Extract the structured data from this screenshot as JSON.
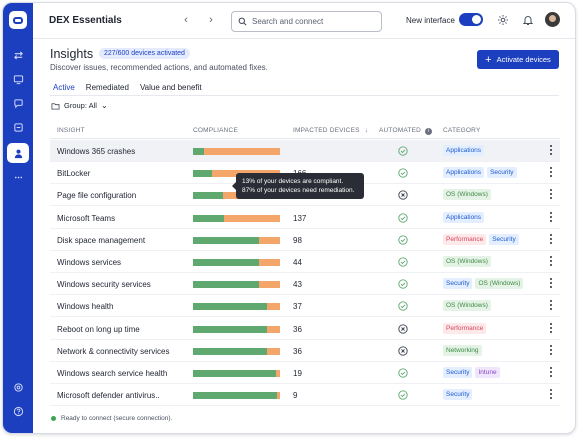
{
  "app": {
    "title": "DEX Essentials"
  },
  "header": {
    "search_placeholder": "Search and connect",
    "new_interface_label": "New interface",
    "new_interface_on": true
  },
  "page": {
    "title": "Insights",
    "devices_badge": "227/600 devices activated",
    "subtitle": "Discover issues, recommended actions, and automated fixes.",
    "primary_button": "Activate devices",
    "tabs": [
      {
        "label": "Active",
        "active": true
      },
      {
        "label": "Remediated",
        "active": false
      },
      {
        "label": "Value and benefit",
        "active": false
      }
    ],
    "group_filter": "Group: All"
  },
  "table": {
    "columns": {
      "insight": "INSIGHT",
      "compliance": "COMPLIANCE",
      "impacted": "IMPACTED DEVICES",
      "automated": "AUTOMATED",
      "category": "CATEGORY"
    },
    "rows": [
      {
        "name": "Windows 365 crashes",
        "compliance": 13,
        "impacted": "",
        "automated": "check",
        "categories": [
          {
            "label": "Applications",
            "color": "blue"
          }
        ]
      },
      {
        "name": "BitLocker",
        "compliance": 22,
        "impacted": "166",
        "automated": "check",
        "categories": [
          {
            "label": "Applications",
            "color": "blue"
          },
          {
            "label": "Security",
            "color": "blue"
          }
        ]
      },
      {
        "name": "Page file configuration",
        "compliance": 35,
        "impacted": "139",
        "automated": "cross",
        "categories": [
          {
            "label": "OS (Windows)",
            "color": "green"
          }
        ]
      },
      {
        "name": "Microsoft Teams",
        "compliance": 36,
        "impacted": "137",
        "automated": "check",
        "categories": [
          {
            "label": "Applications",
            "color": "blue"
          }
        ]
      },
      {
        "name": "Disk space management",
        "compliance": 76,
        "impacted": "98",
        "automated": "check",
        "categories": [
          {
            "label": "Performance",
            "color": "pink"
          },
          {
            "label": "Security",
            "color": "blue"
          }
        ]
      },
      {
        "name": "Windows services",
        "compliance": 76,
        "impacted": "44",
        "automated": "check",
        "categories": [
          {
            "label": "OS (Windows)",
            "color": "green"
          }
        ]
      },
      {
        "name": "Windows security services",
        "compliance": 76,
        "impacted": "43",
        "automated": "check",
        "categories": [
          {
            "label": "Security",
            "color": "blue"
          },
          {
            "label": "OS (Windows)",
            "color": "green"
          }
        ]
      },
      {
        "name": "Windows health",
        "compliance": 85,
        "impacted": "37",
        "automated": "check",
        "categories": [
          {
            "label": "OS (Windows)",
            "color": "green"
          }
        ]
      },
      {
        "name": "Reboot on long up time",
        "compliance": 85,
        "impacted": "36",
        "automated": "cross",
        "categories": [
          {
            "label": "Performance",
            "color": "pink"
          }
        ]
      },
      {
        "name": "Network & connectivity services",
        "compliance": 85,
        "impacted": "36",
        "automated": "cross",
        "categories": [
          {
            "label": "Networking",
            "color": "green"
          }
        ]
      },
      {
        "name": "Windows search service health",
        "compliance": 95,
        "impacted": "19",
        "automated": "check",
        "categories": [
          {
            "label": "Security",
            "color": "blue"
          },
          {
            "label": "Intune",
            "color": "purple"
          }
        ]
      },
      {
        "name": "Microsoft defender antivirus..",
        "compliance": 96,
        "impacted": "9",
        "automated": "check",
        "categories": [
          {
            "label": "Security",
            "color": "blue"
          }
        ]
      }
    ]
  },
  "tooltip": {
    "line1": "13% of your devices are compliant.",
    "line2": "87% of your devices need remediation."
  },
  "status": {
    "text": "Ready to connect (secure connection)."
  },
  "colors": {
    "accent": "#1c3fbf",
    "compliant": "#5fa870",
    "noncompliant": "#f4a56a",
    "status_ok": "#3aa654"
  }
}
